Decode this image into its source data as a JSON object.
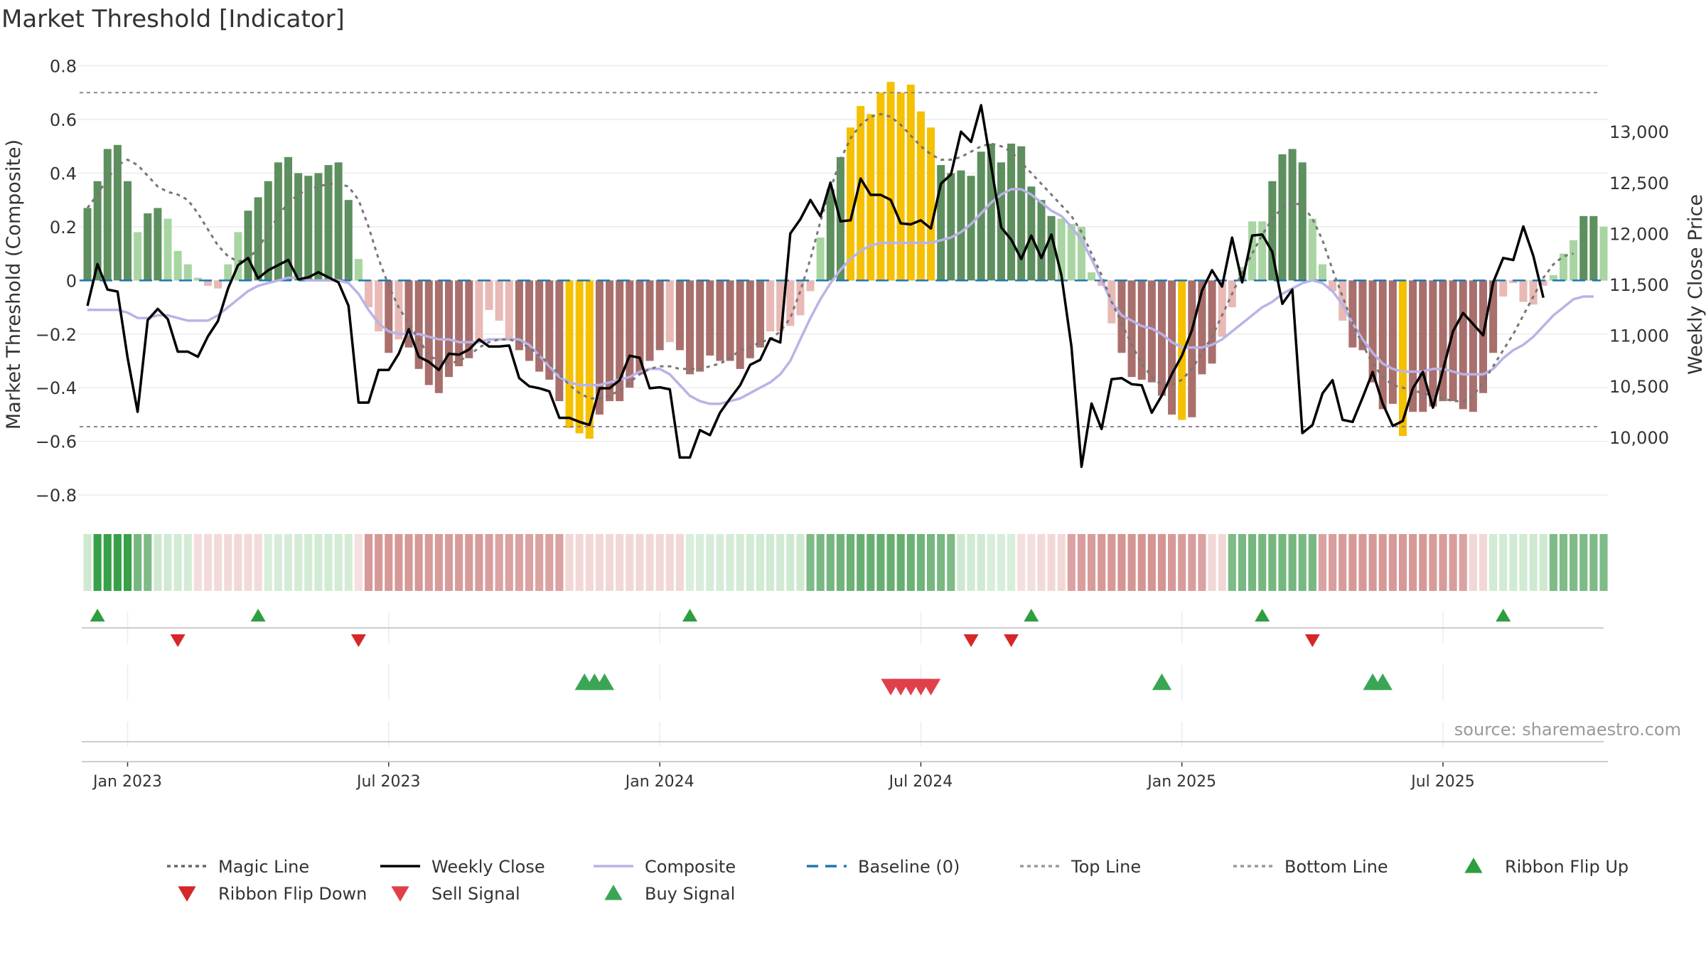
{
  "chart_data": {
    "type": "bar",
    "title": "Market Threshold [Indicator]",
    "ylabel": "Market Threshold (Composite)",
    "ylabel_right": "Weekly Close Price",
    "source": "source: sharemaestro.com",
    "ylim": [
      -0.85,
      0.82
    ],
    "ylim_right": [
      9300,
      13700
    ],
    "yticks": [
      -0.8,
      -0.6,
      -0.4,
      -0.2,
      0,
      0.2,
      0.4,
      0.6,
      0.8
    ],
    "ytick_labels": [
      "−0.8",
      "−0.6",
      "−0.4",
      "−0.2",
      "0",
      "0.2",
      "0.4",
      "0.6",
      "0.8"
    ],
    "yticks_right": [
      10000,
      10500,
      11000,
      11500,
      12000,
      12500,
      13000
    ],
    "ytick_labels_right": [
      "10,000",
      "10,500",
      "11,000",
      "11,500",
      "12,000",
      "12,500",
      "13,000"
    ],
    "xtick_labels": [
      "Jan 2023",
      "Jul 2023",
      "Jan 2024",
      "Jul 2024",
      "Jan 2025",
      "Jul 2025"
    ],
    "xtick_weeks": [
      4,
      30,
      57,
      83,
      109,
      135
    ],
    "top_line": 0.7,
    "bottom_line": -0.545,
    "baseline": 0,
    "legend_position": "bottom",
    "legend": [
      {
        "label": "Magic Line",
        "kind": "dotted",
        "color": "#666666"
      },
      {
        "label": "Weekly Close",
        "kind": "solid",
        "color": "#000000"
      },
      {
        "label": "Composite",
        "kind": "solid",
        "color": "#b9b3e6"
      },
      {
        "label": "Baseline (0)",
        "kind": "dashed",
        "color": "#1f77b4"
      },
      {
        "label": "Top Line",
        "kind": "dotted",
        "color": "#999999"
      },
      {
        "label": "Bottom Line",
        "kind": "dotted",
        "color": "#999999"
      },
      {
        "label": "Ribbon Flip Up",
        "kind": "tri-up",
        "color": "#2e9e3f"
      },
      {
        "label": "Ribbon Flip Down",
        "kind": "tri-down",
        "color": "#d62728"
      },
      {
        "label": "Sell Signal",
        "kind": "tri-down",
        "color": "#e0404b"
      },
      {
        "label": "Buy Signal",
        "kind": "tri-up",
        "color": "#3aa655"
      }
    ],
    "colors": {
      "bar_pos_strong": "#5e8f5e",
      "bar_pos_weak": "#a8d5a2",
      "bar_neg_strong": "#a86f6c",
      "bar_neg_weak": "#e8b9b5",
      "bar_extreme": "#f5c000",
      "ribbon_pos_strong": "#5aa865",
      "ribbon_pos_weak": "#bfe2c2",
      "ribbon_neg_strong": "#cf8886",
      "ribbon_neg_weak": "#eccac8",
      "magic_line": "#777777",
      "weekly_close": "#000000",
      "composite": "#b9b3e6",
      "baseline": "#1f77b4",
      "threshold_line": "#888888"
    },
    "series": {
      "bars": [
        0.27,
        0.37,
        0.49,
        0.505,
        0.37,
        0.18,
        0.25,
        0.27,
        0.23,
        0.11,
        0.06,
        0.01,
        -0.02,
        -0.03,
        0.06,
        0.18,
        0.26,
        0.31,
        0.37,
        0.44,
        0.46,
        0.4,
        0.39,
        0.4,
        0.43,
        0.44,
        0.3,
        0.08,
        -0.1,
        -0.19,
        -0.27,
        -0.22,
        -0.25,
        -0.33,
        -0.39,
        -0.42,
        -0.36,
        -0.32,
        -0.29,
        -0.23,
        -0.11,
        -0.15,
        -0.22,
        -0.26,
        -0.3,
        -0.34,
        -0.37,
        -0.45,
        -0.55,
        -0.57,
        -0.59,
        -0.5,
        -0.45,
        -0.45,
        -0.4,
        -0.35,
        -0.3,
        -0.26,
        -0.23,
        -0.26,
        -0.35,
        -0.34,
        -0.28,
        -0.3,
        -0.3,
        -0.33,
        -0.29,
        -0.25,
        -0.19,
        -0.19,
        -0.17,
        -0.13,
        -0.04,
        0.16,
        0.34,
        0.46,
        0.57,
        0.65,
        0.62,
        0.7,
        0.74,
        0.7,
        0.73,
        0.63,
        0.57,
        0.43,
        0.4,
        0.41,
        0.39,
        0.48,
        0.51,
        0.44,
        0.51,
        0.5,
        0.35,
        0.3,
        0.24,
        0.23,
        0.21,
        0.2,
        0.03,
        -0.02,
        -0.16,
        -0.27,
        -0.36,
        -0.37,
        -0.38,
        -0.43,
        -0.5,
        -0.52,
        -0.51,
        -0.35,
        -0.31,
        -0.21,
        -0.1,
        0.05,
        0.22,
        0.22,
        0.37,
        0.47,
        0.49,
        0.44,
        0.23,
        0.06,
        -0.04,
        -0.15,
        -0.25,
        -0.26,
        -0.38,
        -0.48,
        -0.46,
        -0.58,
        -0.49,
        -0.49,
        -0.47,
        -0.45,
        -0.45,
        -0.48,
        -0.49,
        -0.42,
        -0.27,
        -0.06,
        -0.01,
        -0.08,
        -0.09,
        -0.02,
        0.02,
        0.1,
        0.15,
        0.24,
        0.24,
        0.2
      ],
      "weekly_close": [
        11290,
        11700,
        11450,
        11430,
        10780,
        10250,
        11150,
        11260,
        11160,
        10840,
        10840,
        10790,
        10990,
        11140,
        11460,
        11690,
        11760,
        11560,
        11640,
        11690,
        11740,
        11550,
        11570,
        11620,
        11570,
        11520,
        11290,
        10340,
        10340,
        10660,
        10660,
        10820,
        11060,
        10790,
        10740,
        10660,
        10820,
        10810,
        10860,
        10960,
        10890,
        10890,
        10900,
        10580,
        10500,
        10480,
        10450,
        10190,
        10190,
        10150,
        10120,
        10480,
        10480,
        10560,
        10800,
        10780,
        10480,
        10490,
        10470,
        9800,
        9800,
        10070,
        10020,
        10240,
        10380,
        10510,
        10710,
        10760,
        10970,
        10930,
        12000,
        12140,
        12330,
        12170,
        12500,
        12120,
        12130,
        12540,
        12380,
        12380,
        12330,
        12100,
        12090,
        12130,
        12050,
        12490,
        12580,
        13000,
        12900,
        13260,
        12670,
        12060,
        11940,
        11750,
        11980,
        11760,
        11990,
        11590,
        10890,
        9710,
        10330,
        10080,
        10570,
        10580,
        10520,
        10510,
        10240,
        10410,
        10620,
        10800,
        11050,
        11440,
        11640,
        11480,
        11960,
        11520,
        11980,
        11990,
        11820,
        11310,
        11450,
        10040,
        10120,
        10430,
        10560,
        10170,
        10150,
        10390,
        10640,
        10330,
        10110,
        10160,
        10480,
        10640,
        10290,
        10660,
        11040,
        11220,
        11110,
        11000,
        11520,
        11760,
        11740,
        12070,
        11780,
        11370
      ],
      "composite": [
        -0.11,
        -0.11,
        -0.11,
        -0.11,
        -0.12,
        -0.14,
        -0.14,
        -0.13,
        -0.13,
        -0.14,
        -0.15,
        -0.15,
        -0.15,
        -0.13,
        -0.1,
        -0.07,
        -0.04,
        -0.02,
        -0.01,
        0.0,
        0.01,
        0.01,
        0.0,
        0.0,
        0.0,
        0.0,
        -0.01,
        -0.05,
        -0.11,
        -0.16,
        -0.19,
        -0.2,
        -0.2,
        -0.2,
        -0.21,
        -0.22,
        -0.22,
        -0.23,
        -0.23,
        -0.23,
        -0.22,
        -0.22,
        -0.22,
        -0.22,
        -0.24,
        -0.28,
        -0.32,
        -0.36,
        -0.38,
        -0.39,
        -0.39,
        -0.39,
        -0.38,
        -0.37,
        -0.36,
        -0.34,
        -0.33,
        -0.33,
        -0.35,
        -0.39,
        -0.43,
        -0.45,
        -0.46,
        -0.46,
        -0.45,
        -0.44,
        -0.42,
        -0.4,
        -0.38,
        -0.35,
        -0.3,
        -0.22,
        -0.14,
        -0.07,
        -0.01,
        0.04,
        0.08,
        0.11,
        0.13,
        0.14,
        0.14,
        0.14,
        0.14,
        0.14,
        0.14,
        0.15,
        0.16,
        0.18,
        0.21,
        0.25,
        0.29,
        0.32,
        0.34,
        0.34,
        0.32,
        0.29,
        0.26,
        0.24,
        0.2,
        0.15,
        0.08,
        0.0,
        -0.08,
        -0.13,
        -0.15,
        -0.17,
        -0.18,
        -0.2,
        -0.23,
        -0.25,
        -0.25,
        -0.25,
        -0.24,
        -0.22,
        -0.19,
        -0.16,
        -0.13,
        -0.1,
        -0.08,
        -0.05,
        -0.03,
        -0.01,
        0.0,
        -0.01,
        -0.04,
        -0.09,
        -0.16,
        -0.22,
        -0.27,
        -0.31,
        -0.33,
        -0.34,
        -0.34,
        -0.34,
        -0.33,
        -0.33,
        -0.34,
        -0.35,
        -0.35,
        -0.35,
        -0.33,
        -0.29,
        -0.26,
        -0.24,
        -0.21,
        -0.17,
        -0.13,
        -0.1,
        -0.07,
        -0.06,
        -0.06
      ],
      "magic_line": [
        0.27,
        0.32,
        0.38,
        0.43,
        0.45,
        0.43,
        0.39,
        0.35,
        0.33,
        0.32,
        0.3,
        0.25,
        0.19,
        0.13,
        0.09,
        0.07,
        0.08,
        0.12,
        0.18,
        0.24,
        0.29,
        0.32,
        0.34,
        0.35,
        0.36,
        0.36,
        0.35,
        0.3,
        0.2,
        0.08,
        -0.02,
        -0.1,
        -0.16,
        -0.22,
        -0.28,
        -0.3,
        -0.31,
        -0.3,
        -0.28,
        -0.25,
        -0.23,
        -0.22,
        -0.22,
        -0.23,
        -0.25,
        -0.28,
        -0.31,
        -0.35,
        -0.39,
        -0.42,
        -0.44,
        -0.44,
        -0.43,
        -0.41,
        -0.38,
        -0.35,
        -0.33,
        -0.32,
        -0.32,
        -0.33,
        -0.33,
        -0.33,
        -0.32,
        -0.31,
        -0.29,
        -0.26,
        -0.25,
        -0.23,
        -0.22,
        -0.19,
        -0.14,
        -0.04,
        0.08,
        0.22,
        0.34,
        0.45,
        0.53,
        0.58,
        0.61,
        0.62,
        0.61,
        0.58,
        0.54,
        0.5,
        0.47,
        0.45,
        0.45,
        0.46,
        0.48,
        0.5,
        0.51,
        0.5,
        0.48,
        0.44,
        0.4,
        0.36,
        0.32,
        0.28,
        0.24,
        0.18,
        0.1,
        0.02,
        -0.08,
        -0.16,
        -0.24,
        -0.31,
        -0.36,
        -0.39,
        -0.39,
        -0.37,
        -0.33,
        -0.27,
        -0.21,
        -0.13,
        -0.05,
        0.03,
        0.1,
        0.17,
        0.23,
        0.27,
        0.29,
        0.28,
        0.23,
        0.15,
        0.04,
        -0.06,
        -0.16,
        -0.24,
        -0.31,
        -0.36,
        -0.39,
        -0.4,
        -0.41,
        -0.42,
        -0.43,
        -0.44,
        -0.45,
        -0.45,
        -0.43,
        -0.38,
        -0.32,
        -0.26,
        -0.2,
        -0.13,
        -0.06,
        0.01,
        0.06,
        0.09,
        0.1
      ],
      "ribbon": [
        0.55,
        1.0,
        1.0,
        1.0,
        1.0,
        0.7,
        0.6,
        0.55,
        0.5,
        0.45,
        0.4,
        -0.35,
        -0.4,
        -0.45,
        -0.45,
        -0.5,
        -0.45,
        -0.4,
        0.3,
        0.35,
        0.4,
        0.42,
        0.45,
        0.45,
        0.45,
        0.42,
        0.4,
        -0.25,
        -0.75,
        -0.75,
        -0.75,
        -0.75,
        -0.75,
        -0.75,
        -0.7,
        -0.7,
        -0.7,
        -0.7,
        -0.7,
        -0.7,
        -0.65,
        -0.6,
        -0.6,
        -0.6,
        -0.6,
        -0.6,
        -0.6,
        -0.6,
        -0.55,
        -0.5,
        -0.5,
        -0.5,
        -0.5,
        -0.5,
        -0.5,
        -0.5,
        -0.5,
        -0.5,
        -0.5,
        -0.5,
        0.25,
        0.3,
        0.35,
        0.35,
        0.4,
        0.4,
        0.45,
        0.45,
        0.5,
        0.5,
        0.55,
        0.55,
        0.6,
        0.65,
        0.7,
        0.75,
        0.8,
        0.85,
        0.85,
        0.85,
        0.85,
        0.85,
        0.8,
        0.75,
        0.7,
        0.65,
        0.6,
        0.55,
        0.5,
        0.5,
        0.3,
        0.3,
        0.3,
        -0.3,
        -0.3,
        -0.45,
        -0.5,
        -0.55,
        -0.6,
        -0.65,
        -0.7,
        -0.75,
        -0.75,
        -0.8,
        -0.8,
        -0.8,
        -0.8,
        -0.8,
        -0.75,
        -0.7,
        -0.65,
        -0.6,
        -0.55,
        -0.5,
        0.6,
        0.65,
        0.7,
        0.7,
        0.7,
        0.7,
        0.7,
        0.65,
        0.65,
        -0.6,
        -0.65,
        -0.7,
        -0.75,
        -0.75,
        -0.75,
        -0.75,
        -0.75,
        -0.75,
        -0.75,
        -0.75,
        -0.7,
        -0.7,
        -0.65,
        -0.6,
        -0.55,
        -0.5,
        0.45,
        0.45,
        0.5,
        0.5,
        0.55,
        0.55,
        0.6,
        0.6,
        0.6,
        0.6,
        0.6,
        0.6
      ]
    },
    "ribbon_flip_up_weeks": [
      1,
      17,
      60,
      94,
      117,
      141
    ],
    "ribbon_flip_down_weeks": [
      9,
      27,
      88,
      92,
      122
    ],
    "buy_signal_weeks": [
      49.5,
      50.5,
      51.5,
      107,
      128,
      129
    ],
    "sell_signal_weeks": [
      80,
      81,
      82,
      83,
      84
    ]
  }
}
